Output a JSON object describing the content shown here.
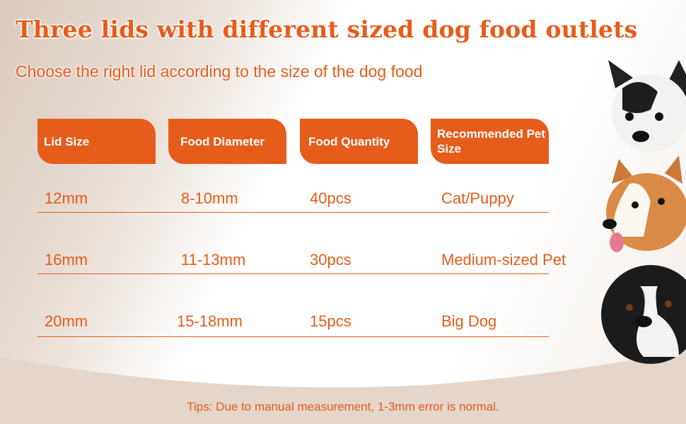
{
  "title": "Three lids with different sized dog food outlets",
  "subtitle": "Choose the right lid according to the size of the dog food",
  "table": {
    "headers": [
      "Lid Size",
      "Food Diameter",
      "Food Quantity",
      "Recommended Pet Size"
    ],
    "rows": [
      [
        "12mm",
        "8-10mm",
        "40pcs",
        "Cat/Puppy"
      ],
      [
        "16mm",
        "11-13mm",
        "30pcs",
        "Medium-sized Pet"
      ],
      [
        "20mm",
        "15-18mm",
        "15pcs",
        "Big Dog"
      ]
    ]
  },
  "tips": "Tips: Due to manual measurement, 1-3mm error is normal.",
  "colors": {
    "accent": "#e65c1a",
    "background_band": "#e4d6cb"
  }
}
